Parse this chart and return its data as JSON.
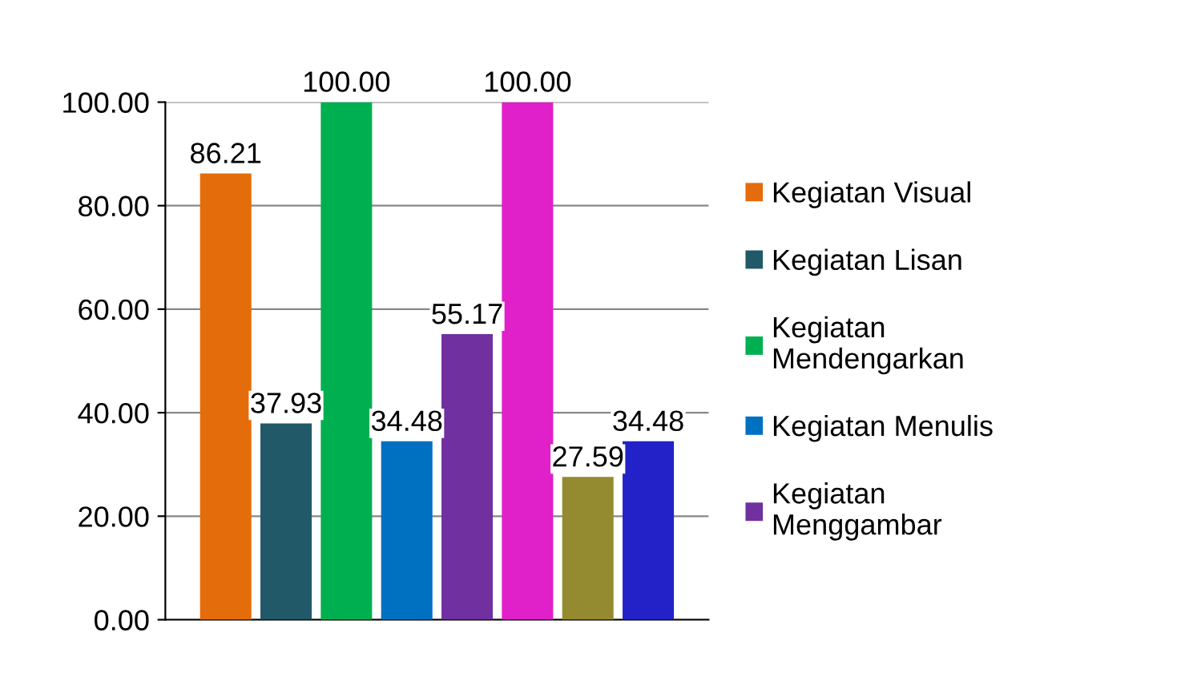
{
  "chart_data": {
    "type": "bar",
    "categories": [
      null
    ],
    "series": [
      {
        "name": "Kegiatan Visual",
        "color": "#e46c0a",
        "values": [
          86.21
        ],
        "value_labels": [
          "86.21"
        ]
      },
      {
        "name": "Kegiatan Lisan",
        "color": "#215968",
        "values": [
          37.93
        ],
        "value_labels": [
          "37.93"
        ]
      },
      {
        "name": "Kegiatan Mendengarkan",
        "color": "#00b050",
        "values": [
          100.0
        ],
        "value_labels": [
          "100.00"
        ]
      },
      {
        "name": "Kegiatan Menulis",
        "color": "#0070c0",
        "values": [
          34.48
        ],
        "value_labels": [
          "34.48"
        ]
      },
      {
        "name": "Kegiatan Menggambar",
        "color": "#7030a0",
        "values": [
          55.17
        ],
        "value_labels": [
          "55.17"
        ]
      },
      {
        "color": "#e020c8",
        "values": [
          100.0
        ],
        "value_labels": [
          "100.00"
        ]
      },
      {
        "color": "#948a30",
        "values": [
          27.59
        ],
        "value_labels": [
          "27.59"
        ]
      },
      {
        "color": "#2222c8",
        "values": [
          34.48
        ],
        "value_labels": [
          "34.48"
        ]
      }
    ],
    "ylim": [
      0,
      100
    ],
    "yticks": [
      {
        "value": 0,
        "label": "0.00"
      },
      {
        "value": 20,
        "label": "20.00"
      },
      {
        "value": 40,
        "label": "40.00"
      },
      {
        "value": 60,
        "label": "60.00"
      },
      {
        "value": 80,
        "label": "80.00"
      },
      {
        "value": 100,
        "label": "100.00"
      }
    ],
    "grid": "y",
    "legend": "right"
  }
}
